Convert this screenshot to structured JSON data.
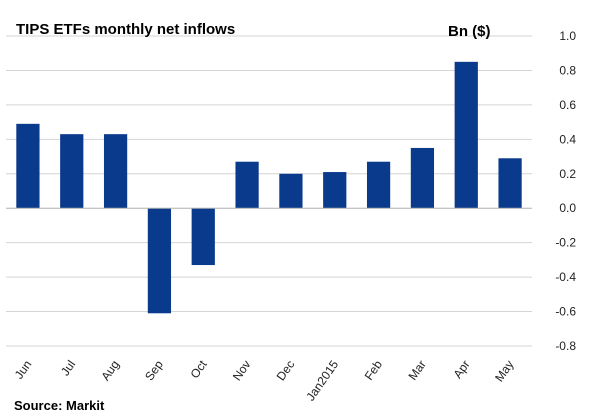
{
  "chart_data": {
    "type": "bar",
    "title": "TIPS ETFs monthly net inflows",
    "unit_label": "Bn ($)",
    "source": "Source: Markit",
    "categories": [
      "Jun",
      "Jul",
      "Aug",
      "Sep",
      "Oct",
      "Nov",
      "Dec",
      "Jan2015",
      "Feb",
      "Mar",
      "Apr",
      "May"
    ],
    "values": [
      0.49,
      0.43,
      0.43,
      -0.61,
      -0.33,
      0.27,
      0.2,
      0.21,
      0.27,
      0.35,
      0.85,
      0.29
    ],
    "ylim": [
      -0.8,
      1.0
    ],
    "yticks": [
      "1.0",
      "0.8",
      "0.6",
      "0.4",
      "0.2",
      "0.0",
      "-0.2",
      "-0.4",
      "-0.6",
      "-0.8"
    ],
    "ytick_values": [
      1.0,
      0.8,
      0.6,
      0.4,
      0.2,
      0.0,
      -0.2,
      -0.4,
      -0.6,
      -0.8
    ],
    "bar_color": "#0a3a8c",
    "grid": true,
    "yaxis_position": "right"
  }
}
